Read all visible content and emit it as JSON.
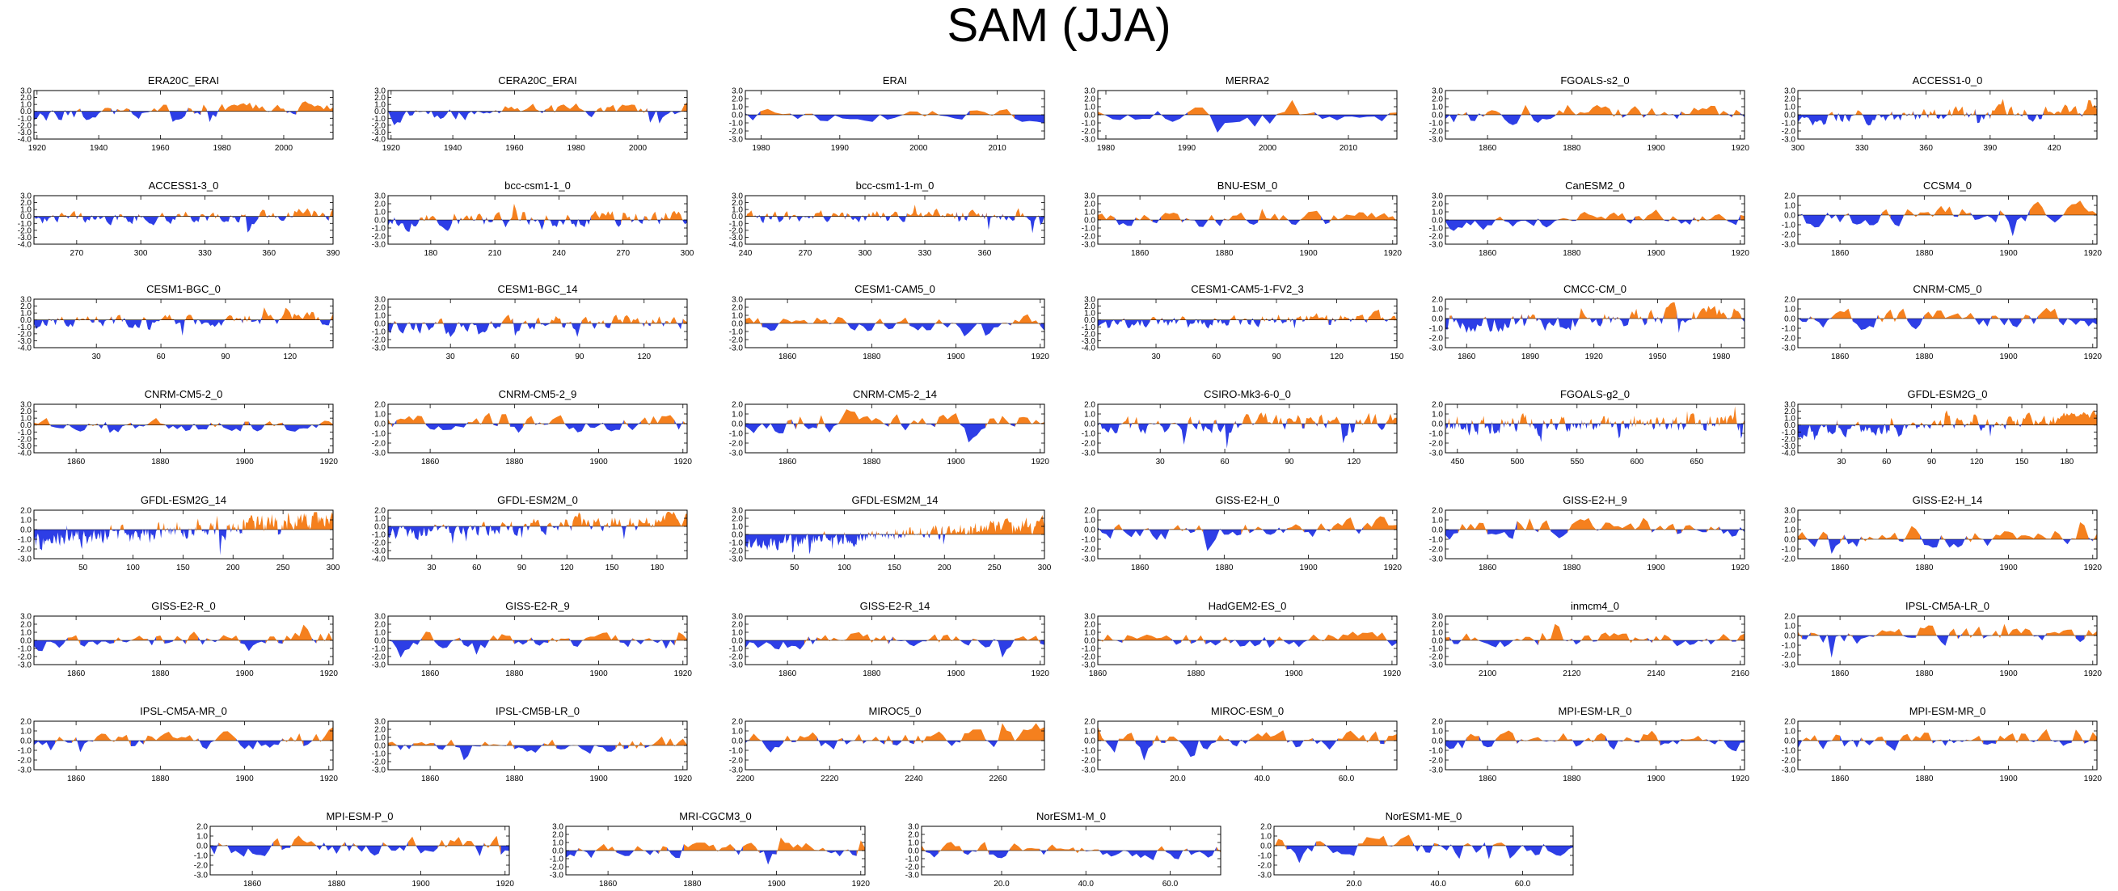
{
  "title": "SAM (JJA)",
  "colors": {
    "positive": "#f5801e",
    "negative": "#2d3ee6",
    "axis": "#000000"
  },
  "chart_data": [
    {
      "type": "area",
      "title": "ERA20C_ERAI",
      "xlim": [
        1919,
        2016
      ],
      "ylim": [
        -4,
        3
      ],
      "yticks": [
        "3.0",
        "2.0",
        "1.0",
        "0.0",
        "-1.0",
        "-2.0",
        "-3.0",
        "-4.0"
      ],
      "xticks": [
        "1920",
        "1940",
        "1960",
        "1980",
        "2000"
      ],
      "trend": 0.014,
      "seed": 1
    },
    {
      "type": "area",
      "title": "CERA20C_ERAI",
      "xlim": [
        1919,
        2016
      ],
      "ylim": [
        -4,
        3
      ],
      "yticks": [
        "3.0",
        "2.0",
        "1.0",
        "0.0",
        "-1.0",
        "-2.0",
        "-3.0",
        "-4.0"
      ],
      "xticks": [
        "1920",
        "1940",
        "1960",
        "1980",
        "2000"
      ],
      "trend": 0.01,
      "seed": 2
    },
    {
      "type": "area",
      "title": "ERAI",
      "xlim": [
        1978,
        2016
      ],
      "ylim": [
        -3,
        3
      ],
      "yticks": [
        "3.0",
        "2.0",
        "1.0",
        "0.0",
        "-1.0",
        "-2.0",
        "-3.0"
      ],
      "xticks": [
        "1980",
        "1990",
        "2000",
        "2010"
      ],
      "trend": 0.0,
      "seed": 3
    },
    {
      "type": "area",
      "title": "MERRA2",
      "xlim": [
        1979,
        2016
      ],
      "ylim": [
        -3,
        3
      ],
      "yticks": [
        "3.0",
        "2.0",
        "1.0",
        "0.0",
        "-1.0",
        "-2.0",
        "-3.0"
      ],
      "xticks": [
        "1980",
        "1990",
        "2000",
        "2010"
      ],
      "trend": 0.0,
      "seed": 4
    },
    {
      "type": "area",
      "title": "FGOALS-s2_0",
      "xlim": [
        1850,
        1921
      ],
      "ylim": [
        -3,
        3
      ],
      "yticks": [
        "3.0",
        "2.0",
        "1.0",
        "0.0",
        "-1.0",
        "-2.0",
        "-3.0"
      ],
      "xticks": [
        "1860",
        "1880",
        "1900",
        "1920"
      ],
      "trend": 0.012,
      "seed": 5
    },
    {
      "type": "area",
      "title": "ACCESS1-0_0",
      "xlim": [
        300,
        440
      ],
      "ylim": [
        -3,
        3
      ],
      "yticks": [
        "3.0",
        "2.0",
        "1.0",
        "0.0",
        "-1.0",
        "-2.0",
        "-3.0"
      ],
      "xticks": [
        "300",
        "330",
        "360",
        "390",
        "420"
      ],
      "trend": 0.008,
      "seed": 6
    },
    {
      "type": "area",
      "title": "ACCESS1-3_0",
      "xlim": [
        250,
        390
      ],
      "ylim": [
        -4,
        3
      ],
      "yticks": [
        "3.0",
        "2.0",
        "1.0",
        "0.0",
        "-1.0",
        "-2.0",
        "-3.0",
        "-4.0"
      ],
      "xticks": [
        "270",
        "300",
        "330",
        "360",
        "390"
      ],
      "trend": 0.004,
      "seed": 7
    },
    {
      "type": "area",
      "title": "bcc-csm1-1_0",
      "xlim": [
        160,
        300
      ],
      "ylim": [
        -3,
        3
      ],
      "yticks": [
        "3.0",
        "2.0",
        "1.0",
        "0.0",
        "-1.0",
        "-2.0",
        "-3.0"
      ],
      "xticks": [
        "180",
        "210",
        "240",
        "270",
        "300"
      ],
      "trend": 0.004,
      "seed": 8
    },
    {
      "type": "area",
      "title": "bcc-csm1-1-m_0",
      "xlim": [
        240,
        390
      ],
      "ylim": [
        -4,
        3
      ],
      "yticks": [
        "3.0",
        "2.0",
        "1.0",
        "0.0",
        "-1.0",
        "-2.0",
        "-3.0",
        "-4.0"
      ],
      "xticks": [
        "240",
        "270",
        "300",
        "330",
        "360"
      ],
      "trend": 0.004,
      "seed": 9
    },
    {
      "type": "area",
      "title": "BNU-ESM_0",
      "xlim": [
        1850,
        1921
      ],
      "ylim": [
        -3,
        3
      ],
      "yticks": [
        "3.0",
        "2.0",
        "1.0",
        "0.0",
        "-1.0",
        "-2.0",
        "-3.0"
      ],
      "xticks": [
        "1860",
        "1880",
        "1900",
        "1920"
      ],
      "trend": 0.0,
      "seed": 10
    },
    {
      "type": "area",
      "title": "CanESM2_0",
      "xlim": [
        1850,
        1921
      ],
      "ylim": [
        -3,
        3
      ],
      "yticks": [
        "3.0",
        "2.0",
        "1.0",
        "0.0",
        "-1.0",
        "-2.0",
        "-3.0"
      ],
      "xticks": [
        "1860",
        "1880",
        "1900",
        "1920"
      ],
      "trend": 0.015,
      "seed": 11
    },
    {
      "type": "area",
      "title": "CCSM4_0",
      "xlim": [
        1850,
        1921
      ],
      "ylim": [
        -3,
        2
      ],
      "yticks": [
        "2.0",
        "1.0",
        "0.0",
        "-1.0",
        "-2.0",
        "-3.0"
      ],
      "xticks": [
        "1860",
        "1880",
        "1900",
        "1920"
      ],
      "trend": 0.012,
      "seed": 12
    },
    {
      "type": "area",
      "title": "CESM1-BGC_0",
      "xlim": [
        1,
        140
      ],
      "ylim": [
        -4,
        3
      ],
      "yticks": [
        "3.0",
        "2.0",
        "1.0",
        "0.0",
        "-1.0",
        "-2.0",
        "-3.0",
        "-4.0"
      ],
      "xticks": [
        "30",
        "60",
        "90",
        "120"
      ],
      "trend": 0.004,
      "seed": 13
    },
    {
      "type": "area",
      "title": "CESM1-BGC_14",
      "xlim": [
        1,
        140
      ],
      "ylim": [
        -3,
        3
      ],
      "yticks": [
        "3.0",
        "2.0",
        "1.0",
        "0.0",
        "-1.0",
        "-2.0",
        "-3.0"
      ],
      "xticks": [
        "30",
        "60",
        "90",
        "120"
      ],
      "trend": 0.004,
      "seed": 14
    },
    {
      "type": "area",
      "title": "CESM1-CAM5_0",
      "xlim": [
        1850,
        1921
      ],
      "ylim": [
        -3,
        3
      ],
      "yticks": [
        "3.0",
        "2.0",
        "1.0",
        "0.0",
        "-1.0",
        "-2.0",
        "-3.0"
      ],
      "xticks": [
        "1860",
        "1880",
        "1900",
        "1920"
      ],
      "trend": 0.0,
      "seed": 15
    },
    {
      "type": "area",
      "title": "CESM1-CAM5-1-FV2_3",
      "xlim": [
        1,
        150
      ],
      "ylim": [
        -4,
        3
      ],
      "yticks": [
        "3.0",
        "2.0",
        "1.0",
        "0.0",
        "-1.0",
        "-2.0",
        "-3.0",
        "-4.0"
      ],
      "xticks": [
        "30",
        "60",
        "90",
        "120",
        "150"
      ],
      "trend": 0.008,
      "seed": 16
    },
    {
      "type": "area",
      "title": "CMCC-CM_0",
      "xlim": [
        1850,
        1991
      ],
      "ylim": [
        -3,
        2
      ],
      "yticks": [
        "2.0",
        "1.0",
        "0.0",
        "-1.0",
        "-2.0",
        "-3.0"
      ],
      "xticks": [
        "1860",
        "1890",
        "1920",
        "1950",
        "1980"
      ],
      "trend": 0.012,
      "seed": 17
    },
    {
      "type": "area",
      "title": "CNRM-CM5_0",
      "xlim": [
        1850,
        1921
      ],
      "ylim": [
        -3,
        2
      ],
      "yticks": [
        "2.0",
        "1.0",
        "0.0",
        "-1.0",
        "-2.0",
        "-3.0"
      ],
      "xticks": [
        "1860",
        "1880",
        "1900",
        "1920"
      ],
      "trend": 0.0,
      "seed": 18
    },
    {
      "type": "area",
      "title": "CNRM-CM5-2_0",
      "xlim": [
        1850,
        1921
      ],
      "ylim": [
        -4,
        3
      ],
      "yticks": [
        "3.0",
        "2.0",
        "1.0",
        "0.0",
        "-1.0",
        "-2.0",
        "-3.0",
        "-4.0"
      ],
      "xticks": [
        "1860",
        "1880",
        "1900",
        "1920"
      ],
      "trend": -0.004,
      "seed": 19
    },
    {
      "type": "area",
      "title": "CNRM-CM5-2_9",
      "xlim": [
        1850,
        1921
      ],
      "ylim": [
        -3,
        2
      ],
      "yticks": [
        "2.0",
        "1.0",
        "0.0",
        "-1.0",
        "-2.0",
        "-3.0"
      ],
      "xticks": [
        "1860",
        "1880",
        "1900",
        "1920"
      ],
      "trend": 0.0,
      "seed": 20
    },
    {
      "type": "area",
      "title": "CNRM-CM5-2_14",
      "xlim": [
        1850,
        1921
      ],
      "ylim": [
        -3,
        2
      ],
      "yticks": [
        "2.0",
        "1.0",
        "0.0",
        "-1.0",
        "-2.0",
        "-3.0"
      ],
      "xticks": [
        "1860",
        "1880",
        "1900",
        "1920"
      ],
      "trend": 0.004,
      "seed": 21
    },
    {
      "type": "area",
      "title": "CSIRO-Mk3-6-0_0",
      "xlim": [
        1,
        140
      ],
      "ylim": [
        -3,
        2
      ],
      "yticks": [
        "2.0",
        "1.0",
        "0.0",
        "-1.0",
        "-2.0",
        "-3.0"
      ],
      "xticks": [
        "30",
        "60",
        "90",
        "120"
      ],
      "trend": 0.004,
      "seed": 22
    },
    {
      "type": "area",
      "title": "FGOALS-g2_0",
      "xlim": [
        440,
        690
      ],
      "ylim": [
        -3,
        2
      ],
      "yticks": [
        "2.0",
        "1.0",
        "0.0",
        "-1.0",
        "-2.0",
        "-3.0"
      ],
      "xticks": [
        "450",
        "500",
        "550",
        "600",
        "650"
      ],
      "trend": 0.002,
      "seed": 23
    },
    {
      "type": "area",
      "title": "GFDL-ESM2G_0",
      "xlim": [
        1,
        200
      ],
      "ylim": [
        -4,
        3
      ],
      "yticks": [
        "3.0",
        "2.0",
        "1.0",
        "0.0",
        "-1.0",
        "-2.0",
        "-3.0",
        "-4.0"
      ],
      "xticks": [
        "30",
        "60",
        "90",
        "120",
        "150",
        "180"
      ],
      "trend": 0.01,
      "seed": 24
    },
    {
      "type": "area",
      "title": "GFDL-ESM2G_14",
      "xlim": [
        1,
        300
      ],
      "ylim": [
        -3,
        2
      ],
      "yticks": [
        "2.0",
        "1.0",
        "0.0",
        "-1.0",
        "-2.0",
        "-3.0"
      ],
      "xticks": [
        "50",
        "100",
        "150",
        "200",
        "250",
        "300"
      ],
      "trend": 0.008,
      "seed": 25
    },
    {
      "type": "area",
      "title": "GFDL-ESM2M_0",
      "xlim": [
        1,
        200
      ],
      "ylim": [
        -4,
        2
      ],
      "yticks": [
        "2.0",
        "1.0",
        "0.0",
        "-1.0",
        "-2.0",
        "-3.0",
        "-4.0"
      ],
      "xticks": [
        "30",
        "60",
        "90",
        "120",
        "150",
        "180"
      ],
      "trend": 0.01,
      "seed": 26
    },
    {
      "type": "area",
      "title": "GFDL-ESM2M_14",
      "xlim": [
        1,
        300
      ],
      "ylim": [
        -3,
        3
      ],
      "yticks": [
        "3.0",
        "2.0",
        "1.0",
        "0.0",
        "-1.0",
        "-2.0",
        "-3.0"
      ],
      "xticks": [
        "50",
        "100",
        "150",
        "200",
        "250",
        "300"
      ],
      "trend": 0.008,
      "seed": 27
    },
    {
      "type": "area",
      "title": "GISS-E2-H_0",
      "xlim": [
        1850,
        1921
      ],
      "ylim": [
        -3,
        2
      ],
      "yticks": [
        "2.0",
        "1.0",
        "0.0",
        "-1.0",
        "-2.0",
        "-3.0"
      ],
      "xticks": [
        "1860",
        "1880",
        "1900",
        "1920"
      ],
      "trend": 0.008,
      "seed": 28
    },
    {
      "type": "area",
      "title": "GISS-E2-H_9",
      "xlim": [
        1850,
        1921
      ],
      "ylim": [
        -3,
        2
      ],
      "yticks": [
        "2.0",
        "1.0",
        "0.0",
        "-1.0",
        "-2.0",
        "-3.0"
      ],
      "xticks": [
        "1860",
        "1880",
        "1900",
        "1920"
      ],
      "trend": 0.0,
      "seed": 29
    },
    {
      "type": "area",
      "title": "GISS-E2-H_14",
      "xlim": [
        1850,
        1921
      ],
      "ylim": [
        -2,
        3
      ],
      "yticks": [
        "3.0",
        "2.0",
        "1.0",
        "0.0",
        "-1.0",
        "-2.0"
      ],
      "xticks": [
        "1860",
        "1880",
        "1900",
        "1920"
      ],
      "trend": 0.004,
      "seed": 30
    },
    {
      "type": "area",
      "title": "GISS-E2-R_0",
      "xlim": [
        1850,
        1921
      ],
      "ylim": [
        -3,
        3
      ],
      "yticks": [
        "3.0",
        "2.0",
        "1.0",
        "0.0",
        "-1.0",
        "-2.0",
        "-3.0"
      ],
      "xticks": [
        "1860",
        "1880",
        "1900",
        "1920"
      ],
      "trend": 0.012,
      "seed": 31
    },
    {
      "type": "area",
      "title": "GISS-E2-R_9",
      "xlim": [
        1850,
        1921
      ],
      "ylim": [
        -3,
        3
      ],
      "yticks": [
        "3.0",
        "2.0",
        "1.0",
        "0.0",
        "-1.0",
        "-2.0",
        "-3.0"
      ],
      "xticks": [
        "1860",
        "1880",
        "1900",
        "1920"
      ],
      "trend": 0.004,
      "seed": 32
    },
    {
      "type": "area",
      "title": "GISS-E2-R_14",
      "xlim": [
        1850,
        1921
      ],
      "ylim": [
        -3,
        3
      ],
      "yticks": [
        "3.0",
        "2.0",
        "1.0",
        "0.0",
        "-1.0",
        "-2.0",
        "-3.0"
      ],
      "xticks": [
        "1860",
        "1880",
        "1900",
        "1920"
      ],
      "trend": 0.006,
      "seed": 33
    },
    {
      "type": "area",
      "title": "HadGEM2-ES_0",
      "xlim": [
        1860,
        1921
      ],
      "ylim": [
        -3,
        3
      ],
      "yticks": [
        "3.0",
        "2.0",
        "1.0",
        "0.0",
        "-1.0",
        "-2.0",
        "-3.0"
      ],
      "xticks": [
        "1860",
        "1880",
        "1900",
        "1920"
      ],
      "trend": 0.0,
      "seed": 34
    },
    {
      "type": "area",
      "title": "inmcm4_0",
      "xlim": [
        2090,
        2161
      ],
      "ylim": [
        -3,
        3
      ],
      "yticks": [
        "3.0",
        "2.0",
        "1.0",
        "0.0",
        "-1.0",
        "-2.0",
        "-3.0"
      ],
      "xticks": [
        "2100",
        "2120",
        "2140",
        "2160"
      ],
      "trend": 0.0,
      "seed": 35
    },
    {
      "type": "area",
      "title": "IPSL-CM5A-LR_0",
      "xlim": [
        1850,
        1921
      ],
      "ylim": [
        -3,
        2
      ],
      "yticks": [
        "2.0",
        "1.0",
        "0.0",
        "-1.0",
        "-2.0",
        "-3.0"
      ],
      "xticks": [
        "1860",
        "1880",
        "1900",
        "1920"
      ],
      "trend": 0.008,
      "seed": 36
    },
    {
      "type": "area",
      "title": "IPSL-CM5A-MR_0",
      "xlim": [
        1850,
        1921
      ],
      "ylim": [
        -3,
        2
      ],
      "yticks": [
        "2.0",
        "1.0",
        "0.0",
        "-1.0",
        "-2.0",
        "-3.0"
      ],
      "xticks": [
        "1860",
        "1880",
        "1900",
        "1920"
      ],
      "trend": 0.01,
      "seed": 37
    },
    {
      "type": "area",
      "title": "IPSL-CM5B-LR_0",
      "xlim": [
        1850,
        1921
      ],
      "ylim": [
        -3,
        3
      ],
      "yticks": [
        "3.0",
        "2.0",
        "1.0",
        "0.0",
        "-1.0",
        "-2.0",
        "-3.0"
      ],
      "xticks": [
        "1860",
        "1880",
        "1900",
        "1920"
      ],
      "trend": 0.004,
      "seed": 38
    },
    {
      "type": "area",
      "title": "MIROC5_0",
      "xlim": [
        2200,
        2271
      ],
      "ylim": [
        -3,
        2
      ],
      "yticks": [
        "2.0",
        "1.0",
        "0.0",
        "-1.0",
        "-2.0",
        "-3.0"
      ],
      "xticks": [
        "2200",
        "2220",
        "2240",
        "2260"
      ],
      "trend": 0.008,
      "seed": 39
    },
    {
      "type": "area",
      "title": "MIROC-ESM_0",
      "xlim": [
        1,
        72
      ],
      "ylim": [
        -3,
        2
      ],
      "yticks": [
        "2.0",
        "1.0",
        "0.0",
        "-1.0",
        "-2.0",
        "-3.0"
      ],
      "xticks": [
        "20.0",
        "40.0",
        "60.0"
      ],
      "trend": 0.0,
      "seed": 40
    },
    {
      "type": "area",
      "title": "MPI-ESM-LR_0",
      "xlim": [
        1850,
        1921
      ],
      "ylim": [
        -3,
        2
      ],
      "yticks": [
        "2.0",
        "1.0",
        "0.0",
        "-1.0",
        "-2.0",
        "-3.0"
      ],
      "xticks": [
        "1860",
        "1880",
        "1900",
        "1920"
      ],
      "trend": 0.004,
      "seed": 41
    },
    {
      "type": "area",
      "title": "MPI-ESM-MR_0",
      "xlim": [
        1850,
        1921
      ],
      "ylim": [
        -3,
        2
      ],
      "yticks": [
        "2.0",
        "1.0",
        "0.0",
        "-1.0",
        "-2.0",
        "-3.0"
      ],
      "xticks": [
        "1860",
        "1880",
        "1900",
        "1920"
      ],
      "trend": 0.006,
      "seed": 42
    },
    {
      "type": "area",
      "title": "MPI-ESM-P_0",
      "xlim": [
        1850,
        1921
      ],
      "ylim": [
        -3,
        2
      ],
      "yticks": [
        "2.0",
        "1.0",
        "0.0",
        "-1.0",
        "-2.0",
        "-3.0"
      ],
      "xticks": [
        "1860",
        "1880",
        "1900",
        "1920"
      ],
      "trend": 0.004,
      "seed": 43
    },
    {
      "type": "area",
      "title": "MRI-CGCM3_0",
      "xlim": [
        1850,
        1921
      ],
      "ylim": [
        -3,
        3
      ],
      "yticks": [
        "3.0",
        "2.0",
        "1.0",
        "0.0",
        "-1.0",
        "-2.0",
        "-3.0"
      ],
      "xticks": [
        "1860",
        "1880",
        "1900",
        "1920"
      ],
      "trend": 0.004,
      "seed": 44
    },
    {
      "type": "area",
      "title": "NorESM1-M_0",
      "xlim": [
        1,
        72
      ],
      "ylim": [
        -3,
        3
      ],
      "yticks": [
        "3.0",
        "2.0",
        "1.0",
        "0.0",
        "-1.0",
        "-2.0",
        "-3.0"
      ],
      "xticks": [
        "20.0",
        "40.0",
        "60.0"
      ],
      "trend": 0.0,
      "seed": 45
    },
    {
      "type": "area",
      "title": "NorESM1-ME_0",
      "xlim": [
        1,
        72
      ],
      "ylim": [
        -3,
        2
      ],
      "yticks": [
        "2.0",
        "1.0",
        "0.0",
        "-1.0",
        "-2.0",
        "-3.0"
      ],
      "xticks": [
        "20.0",
        "40.0",
        "60.0"
      ],
      "trend": 0.0,
      "seed": 46
    }
  ]
}
